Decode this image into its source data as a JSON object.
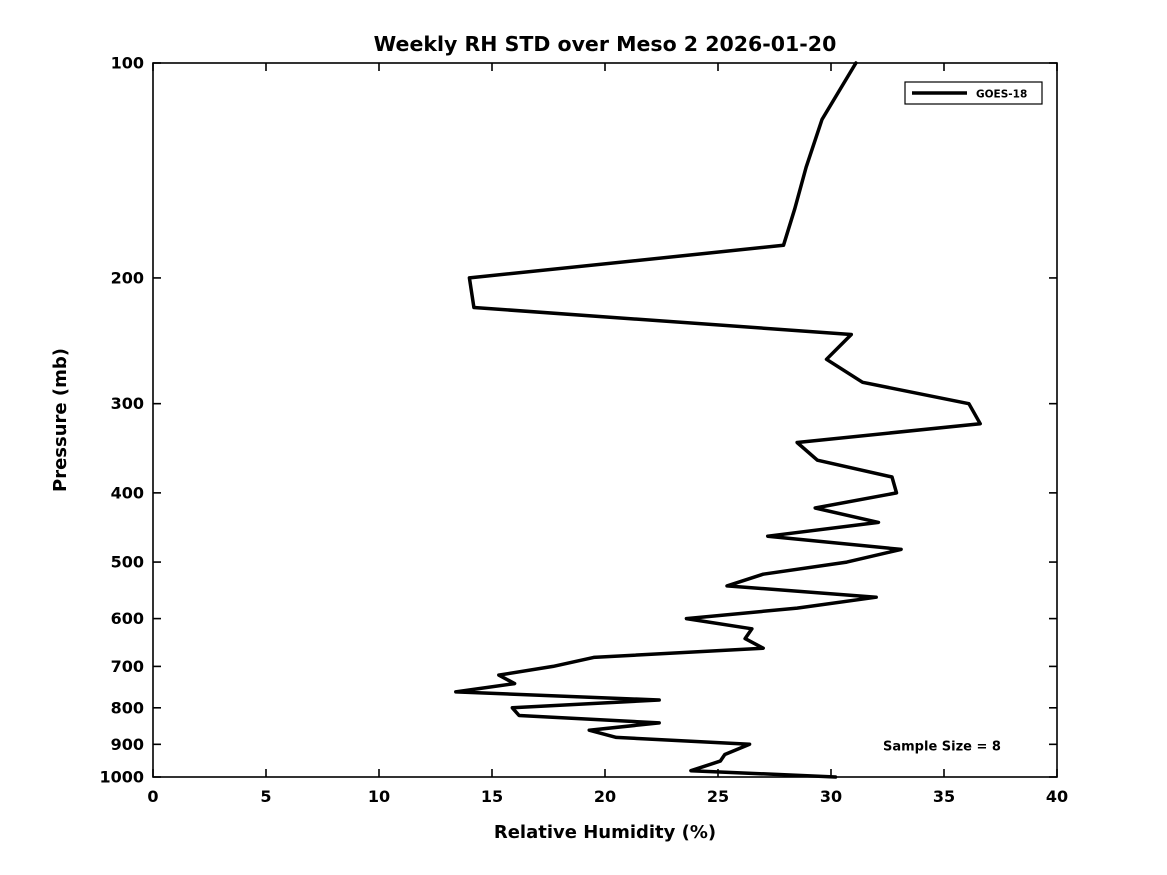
{
  "figure": {
    "background_color": "#ffffff",
    "line_color": "#000000",
    "frame_color": "#000000"
  },
  "chart_data": {
    "type": "line",
    "title": "Weekly RH STD over Meso 2 2026-01-20",
    "xlabel": "Relative Humidity (%)",
    "ylabel": "Pressure (mb)",
    "xlim": [
      0,
      40
    ],
    "ylim": [
      100,
      1000
    ],
    "yscale": "log",
    "y_inverted": true,
    "grid": false,
    "x_ticks": [
      0,
      5,
      10,
      15,
      20,
      25,
      30,
      35,
      40
    ],
    "y_ticks": [
      100,
      200,
      300,
      400,
      500,
      600,
      700,
      800,
      900,
      1000
    ],
    "legend": {
      "position": "northeast",
      "entries": [
        "GOES-18"
      ]
    },
    "annotation": {
      "text": "Sample Size = 8"
    },
    "series": [
      {
        "name": "GOES-18",
        "color": "#000000",
        "x_units": "percent_rh",
        "y_units": "mb",
        "points": [
          {
            "pressure": 100,
            "rh": 31.1
          },
          {
            "pressure": 120,
            "rh": 29.6
          },
          {
            "pressure": 140,
            "rh": 28.9
          },
          {
            "pressure": 160,
            "rh": 28.4
          },
          {
            "pressure": 180,
            "rh": 27.9
          },
          {
            "pressure": 200,
            "rh": 14.0
          },
          {
            "pressure": 220,
            "rh": 14.2
          },
          {
            "pressure": 240,
            "rh": 30.9
          },
          {
            "pressure": 260,
            "rh": 29.8
          },
          {
            "pressure": 280,
            "rh": 31.4
          },
          {
            "pressure": 300,
            "rh": 36.1
          },
          {
            "pressure": 320,
            "rh": 36.6
          },
          {
            "pressure": 340,
            "rh": 28.5
          },
          {
            "pressure": 360,
            "rh": 29.4
          },
          {
            "pressure": 380,
            "rh": 32.7
          },
          {
            "pressure": 400,
            "rh": 32.9
          },
          {
            "pressure": 420,
            "rh": 29.3
          },
          {
            "pressure": 440,
            "rh": 32.1
          },
          {
            "pressure": 460,
            "rh": 27.2
          },
          {
            "pressure": 480,
            "rh": 33.1
          },
          {
            "pressure": 500,
            "rh": 30.7
          },
          {
            "pressure": 520,
            "rh": 27.0
          },
          {
            "pressure": 540,
            "rh": 25.4
          },
          {
            "pressure": 560,
            "rh": 32.0
          },
          {
            "pressure": 580,
            "rh": 28.5
          },
          {
            "pressure": 600,
            "rh": 23.6
          },
          {
            "pressure": 620,
            "rh": 26.5
          },
          {
            "pressure": 640,
            "rh": 26.2
          },
          {
            "pressure": 660,
            "rh": 27.0
          },
          {
            "pressure": 680,
            "rh": 19.5
          },
          {
            "pressure": 700,
            "rh": 17.7
          },
          {
            "pressure": 720,
            "rh": 15.3
          },
          {
            "pressure": 740,
            "rh": 16.0
          },
          {
            "pressure": 760,
            "rh": 13.4
          },
          {
            "pressure": 780,
            "rh": 22.4
          },
          {
            "pressure": 800,
            "rh": 15.9
          },
          {
            "pressure": 820,
            "rh": 16.2
          },
          {
            "pressure": 840,
            "rh": 22.4
          },
          {
            "pressure": 860,
            "rh": 19.3
          },
          {
            "pressure": 880,
            "rh": 20.5
          },
          {
            "pressure": 900,
            "rh": 26.4
          },
          {
            "pressure": 930,
            "rh": 25.3
          },
          {
            "pressure": 950,
            "rh": 25.1
          },
          {
            "pressure": 980,
            "rh": 23.8
          },
          {
            "pressure": 1000,
            "rh": 30.2
          }
        ]
      }
    ]
  }
}
